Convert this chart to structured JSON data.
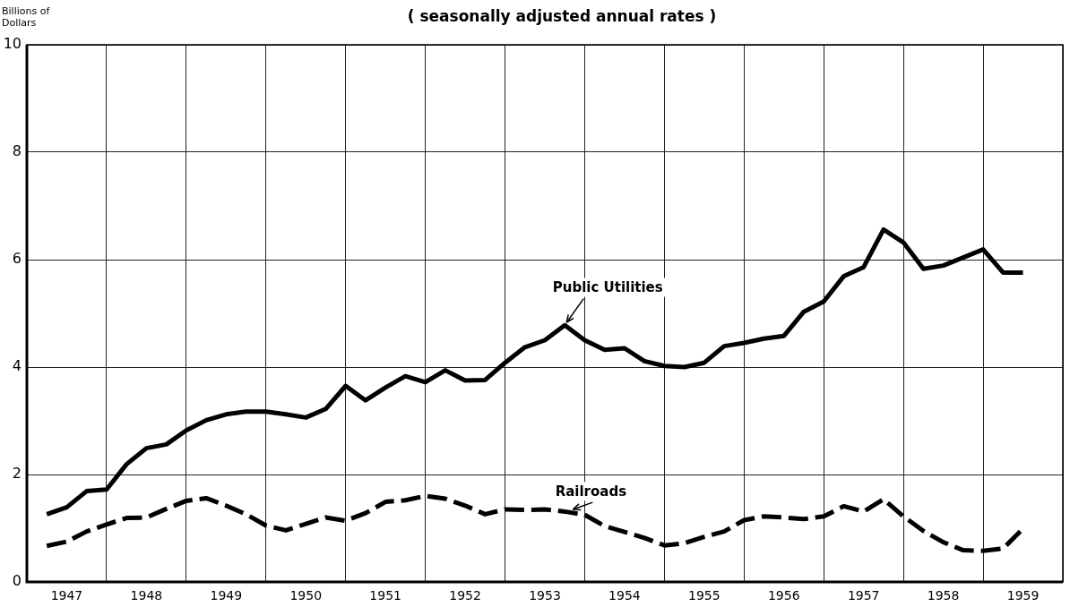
{
  "chart_data": {
    "type": "line",
    "title": "( seasonally adjusted annual rates )",
    "ylabel": "Billions of Dollars",
    "x": [
      1947.25,
      1947.5,
      1947.75,
      1948,
      1948.25,
      1948.5,
      1948.75,
      1949,
      1949.25,
      1949.5,
      1949.75,
      1950,
      1950.25,
      1950.5,
      1950.75,
      1951,
      1951.25,
      1951.5,
      1951.75,
      1952,
      1952.25,
      1952.5,
      1952.75,
      1953,
      1953.25,
      1953.5,
      1953.75,
      1954,
      1954.25,
      1954.5,
      1954.75,
      1955,
      1955.25,
      1955.5,
      1955.75,
      1956,
      1956.25,
      1956.5,
      1956.75,
      1957,
      1957.25,
      1957.5,
      1957.75,
      1958,
      1958.25,
      1958.5,
      1958.75,
      1959,
      1959.25,
      1959.5
    ],
    "series": [
      {
        "color": "#000000",
        "line_style": "solid",
        "values": [
          1.26,
          1.39,
          1.69,
          1.72,
          2.19,
          2.49,
          2.56,
          2.82,
          3.01,
          3.12,
          3.17,
          3.17,
          3.12,
          3.06,
          3.22,
          3.65,
          3.38,
          3.62,
          3.83,
          3.72,
          3.94,
          3.75,
          3.76,
          4.08,
          4.37,
          4.5,
          4.78,
          4.5,
          4.32,
          4.35,
          4.11,
          4.02,
          4.0,
          4.08,
          4.39,
          4.45,
          4.53,
          4.58,
          5.03,
          5.22,
          5.69,
          5.86,
          6.56,
          6.32,
          5.83,
          5.89,
          6.04,
          6.19,
          5.76,
          5.76
        ]
      },
      {
        "color": "#000000",
        "line_style": "dashed",
        "values": [
          0.67,
          0.75,
          0.94,
          1.07,
          1.19,
          1.2,
          1.36,
          1.51,
          1.56,
          1.42,
          1.26,
          1.05,
          0.96,
          1.08,
          1.2,
          1.14,
          1.28,
          1.49,
          1.52,
          1.6,
          1.55,
          1.42,
          1.26,
          1.35,
          1.34,
          1.35,
          1.31,
          1.25,
          1.04,
          0.93,
          0.82,
          0.68,
          0.72,
          0.84,
          0.94,
          1.15,
          1.22,
          1.2,
          1.17,
          1.22,
          1.41,
          1.31,
          1.54,
          1.22,
          0.95,
          0.74,
          0.59,
          0.58,
          0.62,
          0.99
        ]
      }
    ],
    "annotations": [
      {
        "text": "Public Utilities",
        "x": 1953.75,
        "y": 4.78
      },
      {
        "text": "Railroads",
        "x": 1953.83,
        "y": 1.3
      }
    ],
    "xlim": [
      1947,
      1960
    ],
    "xticks": [
      {
        "value": 1947,
        "label": null
      },
      {
        "value": 1947.5,
        "label": "1947"
      },
      {
        "value": 1948,
        "label": null
      },
      {
        "value": 1948.5,
        "label": "1948"
      },
      {
        "value": 1949,
        "label": null
      },
      {
        "value": 1949.5,
        "label": "1949"
      },
      {
        "value": 1950,
        "label": null
      },
      {
        "value": 1950.5,
        "label": "1950"
      },
      {
        "value": 1951,
        "label": null
      },
      {
        "value": 1951.5,
        "label": "1951"
      },
      {
        "value": 1952,
        "label": null
      },
      {
        "value": 1952.5,
        "label": "1952"
      },
      {
        "value": 1953,
        "label": null
      },
      {
        "value": 1953.5,
        "label": "1953"
      },
      {
        "value": 1954,
        "label": null
      },
      {
        "value": 1954.5,
        "label": "1954"
      },
      {
        "value": 1955,
        "label": null
      },
      {
        "value": 1955.5,
        "label": "1955"
      },
      {
        "value": 1956,
        "label": null
      },
      {
        "value": 1956.5,
        "label": "1956"
      },
      {
        "value": 1957,
        "label": null
      },
      {
        "value": 1957.5,
        "label": "1957"
      },
      {
        "value": 1958,
        "label": null
      },
      {
        "value": 1958.5,
        "label": "1958"
      },
      {
        "value": 1959,
        "label": null
      },
      {
        "value": 1959.5,
        "label": "1959"
      },
      {
        "value": 1960,
        "label": null
      }
    ],
    "ylim": [
      0,
      10
    ],
    "yticks": [
      0,
      2,
      4,
      6,
      8,
      10
    ],
    "grid": true,
    "legend": false,
    "marker": "none"
  }
}
